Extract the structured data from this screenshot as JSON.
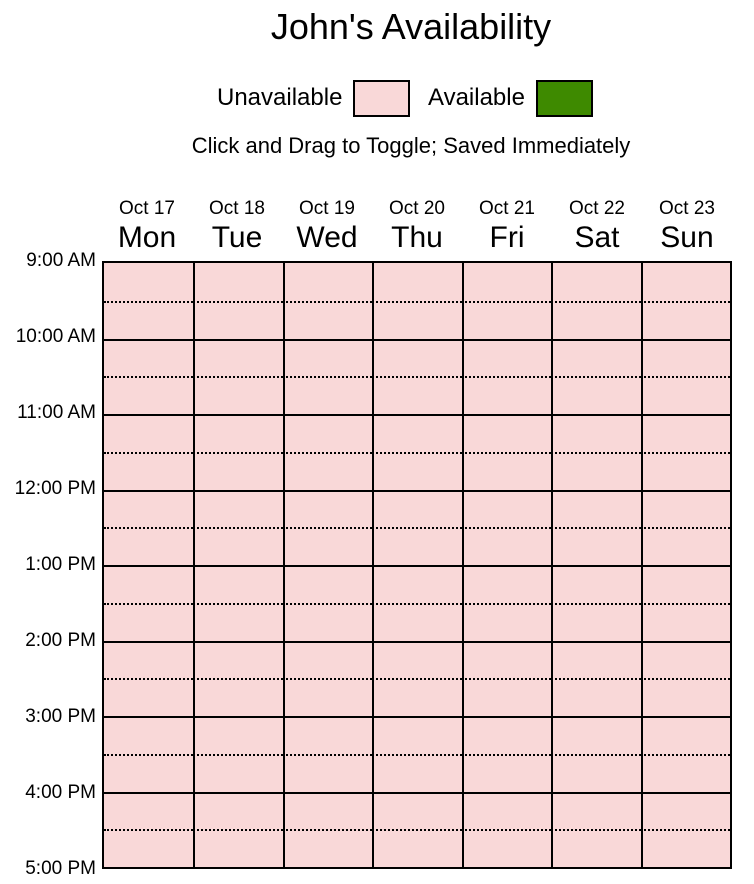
{
  "title": "John's Availability",
  "legend": {
    "unavailable_label": "Unavailable",
    "available_label": "Available",
    "unavailable_color": "#f9d8d8",
    "available_color": "#3e8a00"
  },
  "instructions": "Click and Drag to Toggle; Saved Immediately",
  "days": [
    {
      "date": "Oct 17",
      "name": "Mon"
    },
    {
      "date": "Oct 18",
      "name": "Tue"
    },
    {
      "date": "Oct 19",
      "name": "Wed"
    },
    {
      "date": "Oct 20",
      "name": "Thu"
    },
    {
      "date": "Oct 21",
      "name": "Fri"
    },
    {
      "date": "Oct 22",
      "name": "Sat"
    },
    {
      "date": "Oct 23",
      "name": "Sun"
    }
  ],
  "times": [
    "9:00 AM",
    "10:00 AM",
    "11:00 AM",
    "12:00 PM",
    "1:00 PM",
    "2:00 PM",
    "3:00 PM",
    "4:00 PM",
    "5:00 PM"
  ],
  "slots_available": [
    [
      false,
      false,
      false,
      false,
      false,
      false,
      false,
      false,
      false,
      false,
      false,
      false,
      false,
      false,
      false,
      false
    ],
    [
      false,
      false,
      false,
      false,
      false,
      false,
      false,
      false,
      false,
      false,
      false,
      false,
      false,
      false,
      false,
      false
    ],
    [
      false,
      false,
      false,
      false,
      false,
      false,
      false,
      false,
      false,
      false,
      false,
      false,
      false,
      false,
      false,
      false
    ],
    [
      false,
      false,
      false,
      false,
      false,
      false,
      false,
      false,
      false,
      false,
      false,
      false,
      false,
      false,
      false,
      false
    ],
    [
      false,
      false,
      false,
      false,
      false,
      false,
      false,
      false,
      false,
      false,
      false,
      false,
      false,
      false,
      false,
      false
    ],
    [
      false,
      false,
      false,
      false,
      false,
      false,
      false,
      false,
      false,
      false,
      false,
      false,
      false,
      false,
      false,
      false
    ],
    [
      false,
      false,
      false,
      false,
      false,
      false,
      false,
      false,
      false,
      false,
      false,
      false,
      false,
      false,
      false,
      false
    ]
  ]
}
